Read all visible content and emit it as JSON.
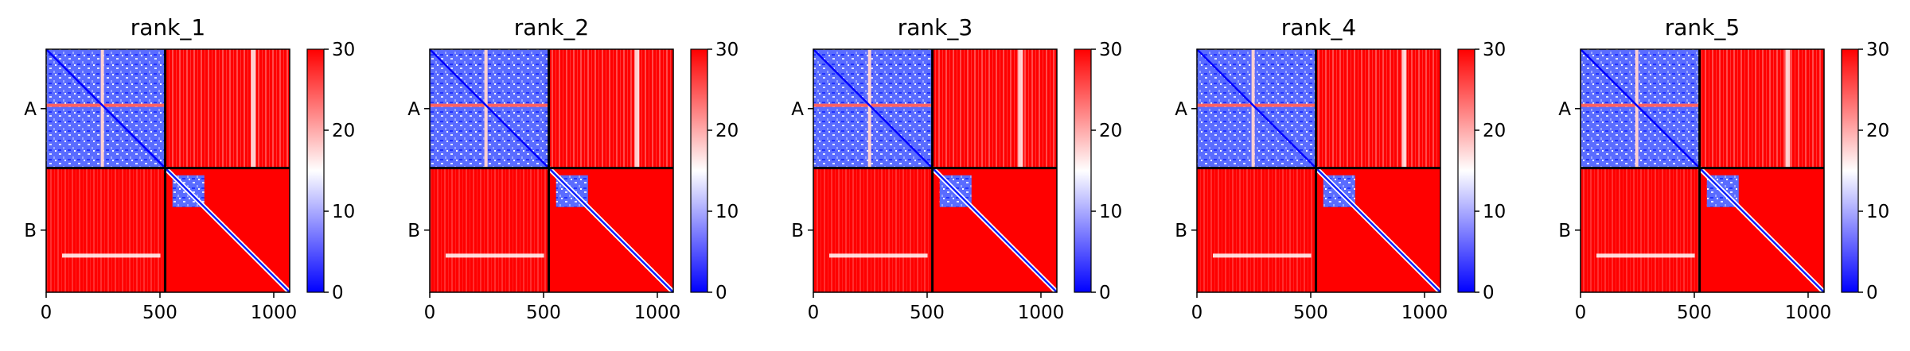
{
  "figure": {
    "background": "#ffffff"
  },
  "chart_data": [
    {
      "type": "heatmap",
      "title": "rank_1",
      "xticks": [
        "0",
        "500",
        "1000"
      ],
      "xtick_values": [
        0,
        500,
        1000
      ],
      "yticks": [
        "A",
        "B"
      ],
      "chains": [
        {
          "name": "A",
          "start": 0,
          "end": 523
        },
        {
          "name": "B",
          "start": 523,
          "end": 1070
        }
      ],
      "xlim": [
        0,
        1070
      ],
      "colorbar": {
        "min": 0,
        "max": 30,
        "ticks": [
          "0",
          "10",
          "20",
          "30"
        ],
        "tick_values": [
          0,
          10,
          20,
          30
        ],
        "colormap": [
          "#0000ff",
          "#ffffff",
          "#ff0000"
        ]
      }
    },
    {
      "type": "heatmap",
      "title": "rank_2",
      "xticks": [
        "0",
        "500",
        "1000"
      ],
      "xtick_values": [
        0,
        500,
        1000
      ],
      "yticks": [
        "A",
        "B"
      ],
      "chains": [
        {
          "name": "A",
          "start": 0,
          "end": 523
        },
        {
          "name": "B",
          "start": 523,
          "end": 1070
        }
      ],
      "xlim": [
        0,
        1070
      ],
      "colorbar": {
        "min": 0,
        "max": 30,
        "ticks": [
          "0",
          "10",
          "20",
          "30"
        ],
        "tick_values": [
          0,
          10,
          20,
          30
        ],
        "colormap": [
          "#0000ff",
          "#ffffff",
          "#ff0000"
        ]
      }
    },
    {
      "type": "heatmap",
      "title": "rank_3",
      "xticks": [
        "0",
        "500",
        "1000"
      ],
      "xtick_values": [
        0,
        500,
        1000
      ],
      "yticks": [
        "A",
        "B"
      ],
      "chains": [
        {
          "name": "A",
          "start": 0,
          "end": 523
        },
        {
          "name": "B",
          "start": 523,
          "end": 1070
        }
      ],
      "xlim": [
        0,
        1070
      ],
      "colorbar": {
        "min": 0,
        "max": 30,
        "ticks": [
          "0",
          "10",
          "20",
          "30"
        ],
        "tick_values": [
          0,
          10,
          20,
          30
        ],
        "colormap": [
          "#0000ff",
          "#ffffff",
          "#ff0000"
        ]
      }
    },
    {
      "type": "heatmap",
      "title": "rank_4",
      "xticks": [
        "0",
        "500",
        "1000"
      ],
      "xtick_values": [
        0,
        500,
        1000
      ],
      "yticks": [
        "A",
        "B"
      ],
      "chains": [
        {
          "name": "A",
          "start": 0,
          "end": 523
        },
        {
          "name": "B",
          "start": 523,
          "end": 1070
        }
      ],
      "xlim": [
        0,
        1070
      ],
      "colorbar": {
        "min": 0,
        "max": 30,
        "ticks": [
          "0",
          "10",
          "20",
          "30"
        ],
        "tick_values": [
          0,
          10,
          20,
          30
        ],
        "colormap": [
          "#0000ff",
          "#ffffff",
          "#ff0000"
        ]
      }
    },
    {
      "type": "heatmap",
      "title": "rank_5",
      "xticks": [
        "0",
        "500",
        "1000"
      ],
      "xtick_values": [
        0,
        500,
        1000
      ],
      "yticks": [
        "A",
        "B"
      ],
      "chains": [
        {
          "name": "A",
          "start": 0,
          "end": 523
        },
        {
          "name": "B",
          "start": 523,
          "end": 1070
        }
      ],
      "xlim": [
        0,
        1070
      ],
      "colorbar": {
        "min": 0,
        "max": 30,
        "ticks": [
          "0",
          "10",
          "20",
          "30"
        ],
        "tick_values": [
          0,
          10,
          20,
          30
        ],
        "colormap": [
          "#0000ff",
          "#ffffff",
          "#ff0000"
        ]
      }
    }
  ]
}
